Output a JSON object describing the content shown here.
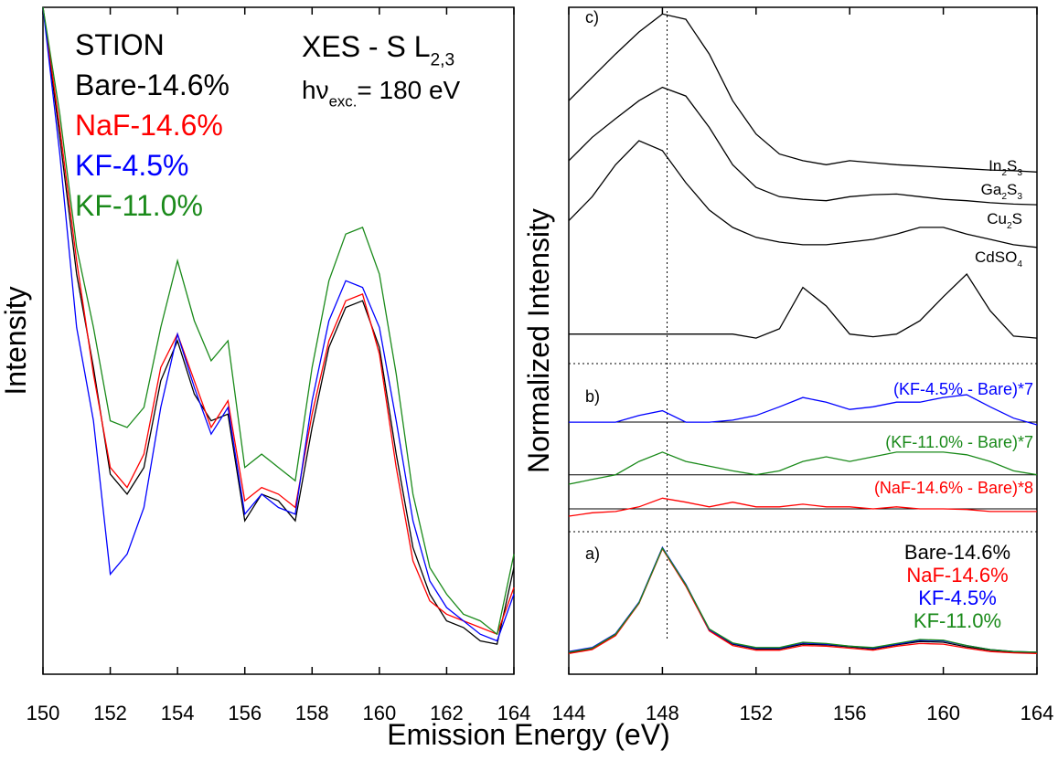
{
  "xlabel": "Emission Energy (eV)",
  "chart_data": [
    {
      "type": "line",
      "ylabel": "Intensity",
      "annotations": {
        "title": "STION",
        "method": [
          "XES - S L",
          "2,3"
        ],
        "excitation": [
          "hν",
          "exc.",
          "= 180 eV"
        ]
      },
      "x": [
        150,
        150.5,
        151,
        151.5,
        152,
        152.5,
        153,
        153.5,
        154,
        154.5,
        155,
        155.5,
        156,
        156.5,
        157,
        157.5,
        158,
        158.5,
        159,
        159.5,
        160,
        160.5,
        161,
        161.5,
        162,
        162.5,
        163,
        163.5,
        164
      ],
      "xlim": [
        150,
        164
      ],
      "xticks": [
        150,
        152,
        154,
        156,
        158,
        160,
        162,
        164
      ],
      "ylim": [
        0,
        100
      ],
      "series": [
        {
          "name": "Bare-14.6%",
          "color": "#000000",
          "values": [
            100,
            80.5,
            60,
            46,
            30,
            27,
            31,
            44,
            50,
            42,
            38,
            39,
            23,
            27,
            26,
            23,
            37,
            49,
            55,
            56,
            49,
            33,
            19,
            12,
            8,
            7,
            5,
            4.5,
            16
          ]
        },
        {
          "name": "NaF-14.6%",
          "color": "#ff0000",
          "values": [
            100,
            82,
            62,
            45,
            31,
            28,
            33,
            46,
            51,
            44,
            37,
            41,
            26,
            28,
            27,
            25,
            39,
            50,
            56,
            57,
            48,
            31,
            17,
            11,
            9,
            8,
            7,
            6,
            13
          ]
        },
        {
          "name": "KF-4.5%",
          "color": "#0000ff",
          "values": [
            100,
            78,
            52,
            38,
            15,
            18,
            25,
            40,
            51,
            43,
            36,
            40,
            24,
            27,
            25,
            24,
            41,
            53,
            59,
            58,
            52,
            38,
            23,
            14,
            10,
            8,
            6,
            5,
            12
          ]
        },
        {
          "name": "KF-11.0%",
          "color": "#1a8a1a",
          "values": [
            100,
            84,
            64,
            52,
            38,
            37,
            40,
            52,
            62,
            53,
            47,
            50,
            31,
            33,
            31,
            29,
            46,
            59,
            66,
            67,
            60,
            45,
            27,
            16,
            12,
            9,
            8,
            6,
            18
          ]
        }
      ]
    },
    {
      "type": "line",
      "ylabel": "Normalized Intensity",
      "panel_labels": [
        "a)",
        "b)",
        "c)"
      ],
      "reference_line": 148.2,
      "x": [
        144,
        145,
        146,
        147,
        148,
        149,
        150,
        151,
        152,
        153,
        154,
        155,
        156,
        157,
        158,
        159,
        160,
        161,
        162,
        163,
        164
      ],
      "xlim": [
        144,
        164
      ],
      "xticks": [
        144,
        148,
        152,
        156,
        160,
        164
      ],
      "ylim": [
        0,
        100
      ],
      "series": [
        {
          "label": [
            "In",
            "2",
            "S",
            "3"
          ],
          "color": "#000000",
          "values": [
            86,
            89.5,
            93,
            96.3,
            99,
            98.2,
            93,
            86,
            81,
            78,
            77,
            76.4,
            77,
            76.7,
            76.4,
            76.2,
            76,
            75.8,
            75.6,
            75.5,
            75.3
          ]
        },
        {
          "label": [
            "Ga",
            "2",
            "S",
            "3"
          ],
          "color": "#000000",
          "values": [
            77,
            80.5,
            83.3,
            86,
            88,
            86.7,
            82,
            76.4,
            73,
            71.6,
            71.2,
            71,
            71.6,
            71.9,
            72,
            71.6,
            71.2,
            71,
            70.7,
            70.5,
            70.4
          ]
        },
        {
          "label": [
            "Cu",
            "2",
            "S"
          ],
          "color": "#000000",
          "values": [
            68,
            71.6,
            76.4,
            80,
            78.5,
            73.7,
            69.6,
            67,
            65.5,
            64.8,
            64.4,
            64.4,
            64.8,
            65.2,
            66,
            67,
            67,
            66,
            65.2,
            64.4,
            64
          ]
        },
        {
          "label": [
            "CdSO",
            "4"
          ],
          "color": "#000000",
          "values": [
            51,
            51,
            51,
            51,
            51,
            51,
            51,
            51,
            50.4,
            51.8,
            58,
            55.2,
            51,
            50.6,
            51,
            53,
            56.6,
            60,
            54.5,
            50.7,
            50.4
          ]
        },
        {
          "name": "(KF-4.5% - Bare)*7",
          "color": "#0000ff",
          "baseline": 37.8,
          "values": [
            37.8,
            37.8,
            37.8,
            38.8,
            39.5,
            37.8,
            37.8,
            38.1,
            38.8,
            40.1,
            41.5,
            40.8,
            39.7,
            40.1,
            40.8,
            40.8,
            41.5,
            41.9,
            40.1,
            38.4,
            37.4
          ]
        },
        {
          "name": "(KF-11.0% - Bare)*7",
          "color": "#1a8a1a",
          "baseline": 29.9,
          "values": [
            28.5,
            29.2,
            29.9,
            31.9,
            33.3,
            31.9,
            31.2,
            30.5,
            29.9,
            30.5,
            31.9,
            32.6,
            31.9,
            32.6,
            33.3,
            33.3,
            33.3,
            32.9,
            31.9,
            30.5,
            29.9
          ]
        },
        {
          "name": "(NaF-14.6% - Bare)*8",
          "color": "#ff0000",
          "baseline": 24.8,
          "values": [
            23.7,
            24.2,
            24.4,
            25.1,
            26.4,
            25.8,
            25.1,
            25.8,
            25.1,
            25.1,
            25.5,
            25.1,
            25.1,
            24.8,
            25.1,
            24.8,
            24.8,
            24.7,
            24.4,
            24.4,
            24.4
          ]
        },
        {
          "name": "Bare-14.6%",
          "color": "#000000",
          "values": [
            3.2,
            3.8,
            5.9,
            10.7,
            18.9,
            13.4,
            6.6,
            4.5,
            3.8,
            3.8,
            4.5,
            4.4,
            4.1,
            3.8,
            4.4,
            4.9,
            4.8,
            4.1,
            3.6,
            3.3,
            3.2
          ]
        },
        {
          "name": "NaF-14.6%",
          "color": "#ff0000",
          "values": [
            3.1,
            3.7,
            5.8,
            10.6,
            18.8,
            13.2,
            6.5,
            4.3,
            3.6,
            3.6,
            4.3,
            4.2,
            3.9,
            3.6,
            4.2,
            4.6,
            4.5,
            3.9,
            3.4,
            3.2,
            3.1
          ]
        },
        {
          "name": "KF-4.5%",
          "color": "#0000ff",
          "values": [
            3.4,
            4,
            6.1,
            10.8,
            19,
            13.5,
            6.7,
            4.6,
            3.9,
            3.9,
            4.7,
            4.5,
            4.2,
            3.9,
            4.5,
            5.1,
            5,
            4.3,
            3.7,
            3.4,
            3.3
          ]
        },
        {
          "name": "KF-11.0%",
          "color": "#1a8a1a",
          "values": [
            3.3,
            3.9,
            6,
            10.7,
            18.9,
            13.4,
            6.8,
            4.7,
            4,
            4,
            4.8,
            4.6,
            4.2,
            4,
            4.6,
            5.2,
            5.1,
            4.3,
            3.7,
            3.4,
            3.3
          ]
        }
      ]
    }
  ]
}
